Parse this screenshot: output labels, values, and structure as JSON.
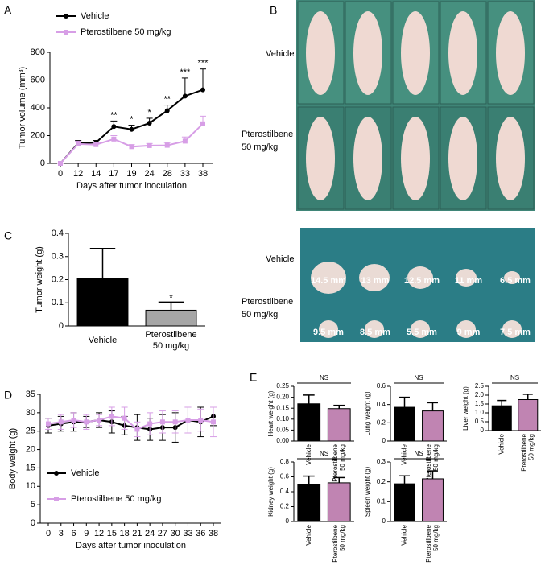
{
  "panel_labels": [
    "A",
    "B",
    "C",
    "D",
    "E"
  ],
  "photos": {
    "mice": {
      "rows": [
        "Vehicle",
        "Pterostilbene 50 mg/kg"
      ]
    },
    "tumors": {
      "rows": [
        "Vehicle",
        "Pterostilbene 50 mg/kg"
      ],
      "measurements": [
        [
          "14.5 mm",
          "13 mm",
          "12.5 mm",
          "11 mm",
          "6.5 mm"
        ],
        [
          "9.5 mm",
          "8.5 mm",
          "5.5 mm",
          "9 mm",
          "7.5 mm"
        ]
      ]
    }
  },
  "chart_data": [
    {
      "type": "line",
      "ylabel": "Tumor volume (mm³)",
      "xlabel": "Days after tumor inoculation",
      "categories": [
        "0",
        "12",
        "14",
        "17",
        "19",
        "24",
        "28",
        "33",
        "38"
      ],
      "ylim": [
        0,
        800
      ],
      "yticks": [
        0,
        200,
        400,
        600,
        800
      ],
      "series": [
        {
          "name": "Vehicle",
          "color": "#000000",
          "marker": "circle",
          "values": [
            0,
            145,
            150,
            265,
            245,
            290,
            380,
            485,
            530
          ],
          "errors": [
            0,
            20,
            15,
            40,
            30,
            35,
            40,
            130,
            150
          ]
        },
        {
          "name": "Pterostilbene 50 mg/kg",
          "color": "#d79ee6",
          "marker": "square",
          "values": [
            0,
            140,
            135,
            175,
            120,
            128,
            130,
            160,
            285
          ],
          "errors": [
            0,
            20,
            15,
            25,
            15,
            15,
            20,
            30,
            55
          ]
        }
      ],
      "annotations": [
        null,
        null,
        null,
        "**",
        "*",
        "*",
        "**",
        "***",
        "***"
      ]
    },
    {
      "type": "bar",
      "ylabel": "Tumor weight (g)",
      "categories": [
        "Vehicle",
        "Pterostilbene 50 mg/kg"
      ],
      "values": [
        0.205,
        0.068
      ],
      "errors": [
        0.13,
        0.035
      ],
      "colors": [
        "#000000",
        "#a6a6a6"
      ],
      "ylim": [
        0,
        0.4
      ],
      "yticks": [
        0,
        0.1,
        0.2,
        0.3,
        0.4
      ],
      "annotations": [
        null,
        "*"
      ]
    },
    {
      "type": "line",
      "ylabel": "Body weight (g)",
      "xlabel": "Days after tumor inoculation",
      "categories": [
        "0",
        "3",
        "6",
        "9",
        "12",
        "15",
        "18",
        "21",
        "24",
        "27",
        "30",
        "33",
        "36",
        "38"
      ],
      "ylim": [
        0,
        35
      ],
      "yticks": [
        0,
        5,
        10,
        15,
        20,
        25,
        30,
        35
      ],
      "series": [
        {
          "name": "Vehicle",
          "color": "#000000",
          "marker": "circle",
          "values": [
            26.5,
            27,
            27.5,
            27.5,
            28,
            27.5,
            26.5,
            26,
            25.5,
            26,
            26,
            28,
            27.5,
            29
          ],
          "errors": [
            2,
            2,
            2.5,
            1.5,
            2,
            3,
            2.5,
            3.5,
            3,
            3.5,
            4,
            3.5,
            4,
            2.5
          ]
        },
        {
          "name": "Pterostilbene 50 mg/kg",
          "color": "#d79ee6",
          "marker": "square",
          "values": [
            27,
            27.5,
            28,
            27.5,
            28,
            29,
            28.5,
            25.5,
            27,
            27.5,
            27.5,
            28,
            28,
            27.5
          ],
          "errors": [
            1.5,
            2,
            2,
            2,
            1.5,
            2.5,
            3,
            2,
            3,
            3,
            3,
            3.5,
            3,
            4
          ]
        }
      ],
      "legend": "center-left"
    },
    {
      "type": "bar",
      "ylabel": "Heart weight (g)",
      "categories": [
        "Vehicle",
        "Pterostilbene 50 mg/kg"
      ],
      "values": [
        0.17,
        0.148
      ],
      "errors": [
        0.04,
        0.015
      ],
      "colors": [
        "#000000",
        "#c084b2"
      ],
      "ylim": [
        0,
        0.25
      ],
      "yticks": [
        {
          "value": 0,
          "label": "0.00"
        },
        {
          "value": 0.05,
          "label": "0.05"
        },
        {
          "value": 0.1,
          "label": "0.10"
        },
        {
          "value": 0.15,
          "label": "0.15"
        },
        {
          "value": 0.2,
          "label": "0.20"
        },
        {
          "value": 0.25,
          "label": "0.25"
        }
      ],
      "annotation": "NS"
    },
    {
      "type": "bar",
      "ylabel": "Lung weight (g)",
      "categories": [
        "Vehicle",
        "Pterostilbene 50 mg/kg"
      ],
      "values": [
        0.37,
        0.33
      ],
      "errors": [
        0.11,
        0.09
      ],
      "colors": [
        "#000000",
        "#c084b2"
      ],
      "ylim": [
        0,
        0.6
      ],
      "yticks": [
        0,
        0.2,
        0.4,
        0.6
      ],
      "annotation": "NS"
    },
    {
      "type": "bar",
      "ylabel": "Liver weight (g)",
      "categories": [
        "Vehicle",
        "Pterostilbene 50 mg/kg"
      ],
      "values": [
        1.4,
        1.75
      ],
      "errors": [
        0.3,
        0.3
      ],
      "colors": [
        "#000000",
        "#c084b2"
      ],
      "ylim": [
        0,
        2.5
      ],
      "yticks": [
        0,
        0.5,
        {
          "value": 1,
          "label": "1.0"
        },
        1.5,
        {
          "value": 2,
          "label": "2.0"
        },
        2.5
      ],
      "annotation": "NS"
    },
    {
      "type": "bar",
      "ylabel": "Kidney weight (g)",
      "categories": [
        "Vehicle",
        "Pterostilbene 50 mg/kg"
      ],
      "values": [
        0.5,
        0.52
      ],
      "errors": [
        0.11,
        0.07
      ],
      "colors": [
        "#000000",
        "#c084b2"
      ],
      "ylim": [
        0,
        0.8
      ],
      "yticks": [
        0,
        0.2,
        0.4,
        0.6,
        0.8
      ],
      "annotation": "NS"
    },
    {
      "type": "bar",
      "ylabel": "Spleen weight (g)",
      "categories": [
        "Vehicle",
        "Pterostilbene 50 mg/kg"
      ],
      "values": [
        0.19,
        0.215
      ],
      "errors": [
        0.04,
        0.04
      ],
      "colors": [
        "#000000",
        "#c084b2"
      ],
      "ylim": [
        0,
        0.3
      ],
      "yticks": [
        0,
        0.1,
        0.2,
        0.3
      ],
      "annotation": "NS"
    }
  ]
}
